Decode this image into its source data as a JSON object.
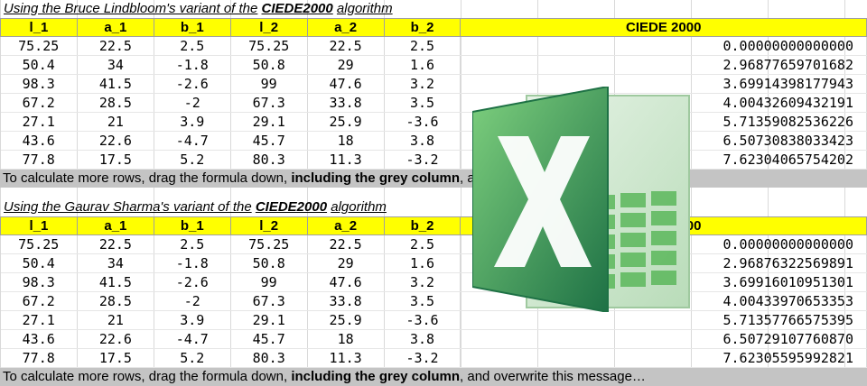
{
  "headers": [
    "l_1",
    "a_1",
    "b_1",
    "l_2",
    "a_2",
    "b_2",
    "CIEDE 2000"
  ],
  "section1": {
    "title_prefix": "Using the Bruce Lindbloom's variant of the",
    "title_algo": "CIEDE2000",
    "title_suffix": "algorithm",
    "rows": [
      [
        "75.25",
        "22.5",
        "2.5",
        "75.25",
        "22.5",
        "2.5",
        "0.00000000000000"
      ],
      [
        "50.4",
        "34",
        "-1.8",
        "50.8",
        "29",
        "1.6",
        "2.96877659701682"
      ],
      [
        "98.3",
        "41.5",
        "-2.6",
        "99",
        "47.6",
        "3.2",
        "3.69914398177943"
      ],
      [
        "67.2",
        "28.5",
        "-2",
        "67.3",
        "33.8",
        "3.5",
        "4.00432609432191"
      ],
      [
        "27.1",
        "21",
        "3.9",
        "29.1",
        "25.9",
        "-3.6",
        "5.71359082536226"
      ],
      [
        "43.6",
        "22.6",
        "-4.7",
        "45.7",
        "18",
        "3.8",
        "6.50730838033423"
      ],
      [
        "77.8",
        "17.5",
        "5.2",
        "80.3",
        "11.3",
        "-3.2",
        "7.62304065754202"
      ]
    ]
  },
  "section2": {
    "title_prefix": "Using the Gaurav Sharma's variant of the",
    "title_algo": "CIEDE2000",
    "title_suffix": "algorithm",
    "rows": [
      [
        "75.25",
        "22.5",
        "2.5",
        "75.25",
        "22.5",
        "2.5",
        "0.00000000000000"
      ],
      [
        "50.4",
        "34",
        "-1.8",
        "50.8",
        "29",
        "1.6",
        "2.96876322569891"
      ],
      [
        "98.3",
        "41.5",
        "-2.6",
        "99",
        "47.6",
        "3.2",
        "3.69916010951301"
      ],
      [
        "67.2",
        "28.5",
        "-2",
        "67.3",
        "33.8",
        "3.5",
        "4.00433970653353"
      ],
      [
        "27.1",
        "21",
        "3.9",
        "29.1",
        "25.9",
        "-3.6",
        "5.71357766575395"
      ],
      [
        "43.6",
        "22.6",
        "-4.7",
        "45.7",
        "18",
        "3.8",
        "6.50729107760870"
      ],
      [
        "77.8",
        "17.5",
        "5.2",
        "80.3",
        "11.3",
        "-3.2",
        "7.62305595992821"
      ]
    ]
  },
  "message": {
    "part1": "To calculate more rows, drag the formula down,",
    "part2": "including the grey column",
    "part3": ", and overwrite this message…"
  },
  "colors": {
    "header_bg": "#ffff00",
    "message_bg": "#c4c4c4",
    "logo_green_dark": "#1e7145",
    "logo_green_light": "#4caf50"
  },
  "icons": {
    "logo": "excel-logo-icon"
  }
}
